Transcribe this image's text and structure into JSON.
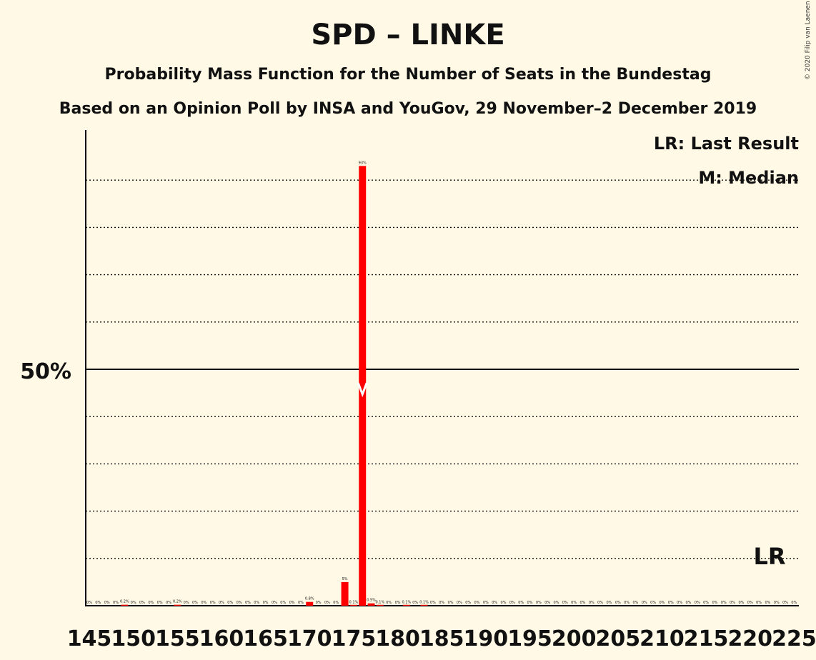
{
  "header": {
    "title": "SPD – LINKE",
    "subtitle": "Probability Mass Function for the Number of Seats in the Bundestag",
    "source": "Based on an Opinion Poll by INSA and YouGov, 29 November–2 December 2019",
    "copyright": "© 2020 Filip van Laenen"
  },
  "legend": {
    "last_result": "LR: Last Result",
    "median": "M: Median"
  },
  "colors": {
    "background": "#FFF9E5",
    "bar": "#FF0000",
    "text": "#111111"
  },
  "chart_data": {
    "type": "bar",
    "x": [
      145,
      146,
      147,
      148,
      149,
      150,
      151,
      152,
      153,
      154,
      155,
      156,
      157,
      158,
      159,
      160,
      161,
      162,
      163,
      164,
      165,
      166,
      167,
      168,
      169,
      170,
      171,
      172,
      173,
      174,
      175,
      176,
      177,
      178,
      179,
      180,
      181,
      182,
      183,
      184,
      185,
      186,
      187,
      188,
      189,
      190,
      191,
      192,
      193,
      194,
      195,
      196,
      197,
      198,
      199,
      200,
      201,
      202,
      203,
      204,
      205,
      206,
      207,
      208,
      209,
      210,
      211,
      212,
      213,
      214,
      215,
      216,
      217,
      218,
      219,
      220,
      221,
      222,
      223,
      224,
      225
    ],
    "values": [
      0,
      0,
      0,
      0,
      0.2,
      0,
      0,
      0,
      0,
      0,
      0.2,
      0,
      0,
      0,
      0,
      0,
      0,
      0,
      0,
      0,
      0,
      0,
      0,
      0,
      0,
      0.8,
      0,
      0,
      0,
      5,
      0.1,
      93,
      0.5,
      0.1,
      0,
      0,
      0.1,
      0,
      0.1,
      0,
      0,
      0,
      0,
      0,
      0,
      0,
      0,
      0,
      0,
      0,
      0,
      0,
      0,
      0,
      0,
      0,
      0,
      0,
      0,
      0,
      0,
      0,
      0,
      0,
      0,
      0,
      0,
      0,
      0,
      0,
      0,
      0,
      0,
      0,
      0,
      0,
      0,
      0,
      0,
      0,
      0
    ],
    "data_labels": [
      "0%",
      "0%",
      "0%",
      "0%",
      "0.2%",
      "0%",
      "0%",
      "0%",
      "0%",
      "0%",
      "0.2%",
      "0%",
      "0%",
      "0%",
      "0%",
      "0%",
      "0%",
      "0%",
      "0%",
      "0%",
      "0%",
      "0%",
      "0%",
      "0%",
      "0%",
      "0.8%",
      "0%",
      "0%",
      "0%",
      "5%",
      "0.1%",
      "93%",
      "0.5%",
      "0.1%",
      "0%",
      "0%",
      "0.1%",
      "0%",
      "0.1%",
      "0%",
      "0%",
      "0%",
      "0%",
      "0%",
      "0%",
      "0%",
      "0%",
      "0%",
      "0%",
      "0%",
      "0%",
      "0%",
      "0%",
      "0%",
      "0%",
      "0%",
      "0%",
      "0%",
      "0%",
      "0%",
      "0%",
      "0%",
      "0%",
      "0%",
      "0%",
      "0%",
      "0%",
      "0%",
      "0%",
      "0%",
      "0%",
      "0%",
      "0%",
      "0%",
      "0%",
      "0%",
      "0%",
      "0%",
      "0%",
      "0%",
      "0%"
    ],
    "x_tick_labels": [
      "145",
      "150",
      "155",
      "160",
      "165",
      "170",
      "175",
      "180",
      "185",
      "190",
      "195",
      "200",
      "205",
      "210",
      "215",
      "220",
      "225"
    ],
    "y_tick_label": "50%",
    "ylim": [
      0,
      100
    ],
    "grid": "dotted every 10%",
    "median": 176,
    "median_marker": "M",
    "last_result": 225,
    "last_result_label": "LR",
    "legend_placement": "top-right"
  }
}
